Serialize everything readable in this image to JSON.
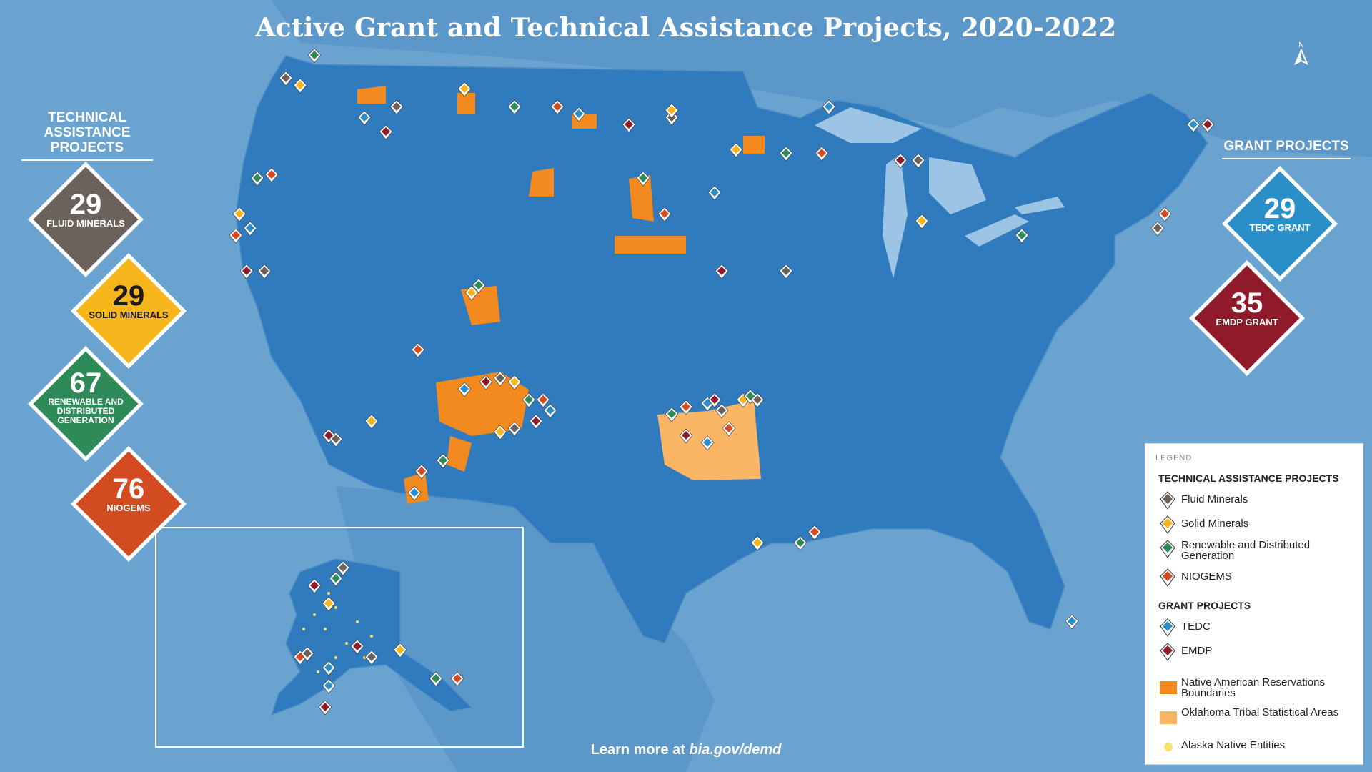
{
  "title": "Active Grant and Technical Assistance Projects, 2020-2022",
  "north_arrow": "N",
  "footer": {
    "prefix": "Learn more at ",
    "link": "bia.gov/demd"
  },
  "colors": {
    "ocean": "#6aa3cf",
    "land": "#2f7bbd",
    "land_other": "#5b98c9",
    "reservation": "#f28a1f",
    "oklahoma_tsa": "#fbb665",
    "alaska_entity": "#f7e36b",
    "fluid": "#6b625b",
    "solid": "#f6b51a",
    "renewable": "#2f8a5a",
    "niogems": "#d34c21",
    "tedc": "#2a8fc8",
    "emdp": "#8e1a2a"
  },
  "technical_assistance": {
    "heading": "Technical Assistance Projects",
    "items": [
      {
        "count": "29",
        "label": "Fluid Minerals",
        "color": "#6b625b"
      },
      {
        "count": "29",
        "label": "Solid Minerals",
        "color": "#f6b51a"
      },
      {
        "count": "67",
        "label": "Renewable and Distributed Generation",
        "color": "#2f8a5a"
      },
      {
        "count": "76",
        "label": "NIOGEMS",
        "color": "#d34c21"
      }
    ]
  },
  "grant_projects": {
    "heading": "Grant Projects",
    "items": [
      {
        "count": "29",
        "label": "TEDC Grant",
        "color": "#2a8fc8"
      },
      {
        "count": "35",
        "label": "EMDP Grant",
        "color": "#8e1a2a"
      }
    ]
  },
  "legend": {
    "title": "LEGEND",
    "ta_heading": "Technical Assistance Projects",
    "ta_items": [
      {
        "label": "Fluid Minerals",
        "icon": "fluid-marker-icon",
        "color": "#6b625b"
      },
      {
        "label": "Solid Minerals",
        "icon": "solid-marker-icon",
        "color": "#f6b51a"
      },
      {
        "label": "Renewable and Distributed Generation",
        "icon": "renewable-marker-icon",
        "color": "#2f8a5a"
      },
      {
        "label": "NIOGEMS",
        "icon": "niogems-marker-icon",
        "color": "#d34c21"
      }
    ],
    "grant_heading": "Grant Projects",
    "grant_items": [
      {
        "label": "TEDC",
        "icon": "tedc-marker-icon",
        "color": "#2a8fc8"
      },
      {
        "label": "EMDP",
        "icon": "emdp-marker-icon",
        "color": "#8e1a2a"
      }
    ],
    "area_items": [
      {
        "label": "Native American Reservations Boundaries",
        "color": "#f28a1f"
      },
      {
        "label": "Oklahoma Tribal Statistical Areas",
        "color": "#fbb665"
      },
      {
        "label": "Alaska Native Entities",
        "color": "#f7e36b"
      }
    ]
  }
}
